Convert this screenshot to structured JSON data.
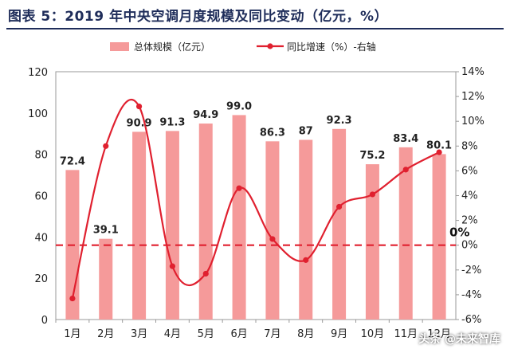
{
  "title": "图表 5：2019 年中央空调月度规模及同比变动（亿元，%）",
  "watermark": "头条 @未来智库",
  "colors": {
    "bar": "#f59a9a",
    "line": "#e0202f",
    "zero_line": "#e0202f",
    "title": "#1f2d5a"
  },
  "chart_data": {
    "type": "bar+line",
    "categories": [
      "1月",
      "2月",
      "3月",
      "4月",
      "5月",
      "6月",
      "7月",
      "8月",
      "9月",
      "10月",
      "11月",
      "12月"
    ],
    "series": [
      {
        "name": "总体规模（亿元）",
        "type": "bar",
        "axis": "left",
        "values": [
          72.4,
          39.1,
          90.9,
          91.3,
          94.9,
          99.0,
          86.3,
          87,
          92.3,
          75.2,
          83.4,
          80.1
        ],
        "labels": [
          "72.4",
          "39.1",
          "90.9",
          "91.3",
          "94.9",
          "99.0",
          "86.3",
          "87",
          "92.3",
          "75.2",
          "83.4",
          "80.1"
        ]
      },
      {
        "name": "同比增速（%）-右轴",
        "type": "line",
        "axis": "right",
        "values": [
          -4.3,
          8.0,
          11.2,
          -1.7,
          -2.3,
          4.6,
          0.5,
          -1.2,
          3.1,
          4.1,
          6.1,
          7.5
        ]
      }
    ],
    "y_left": {
      "min": 0,
      "max": 120,
      "ticks": [
        0,
        20,
        40,
        60,
        80,
        100,
        120
      ]
    },
    "y_right": {
      "min": -6,
      "max": 14,
      "ticks": [
        -6,
        -4,
        -2,
        0,
        2,
        4,
        6,
        8,
        10,
        12,
        14
      ],
      "tick_labels": [
        "-6%",
        "-4%",
        "-2%",
        "0%",
        "2%",
        "4%",
        "6%",
        "8%",
        "10%",
        "12%",
        "14%"
      ]
    },
    "reference_line": {
      "axis": "right",
      "value": 0,
      "label": "0%",
      "style": "dashed"
    },
    "legend_placement": "top-center"
  }
}
